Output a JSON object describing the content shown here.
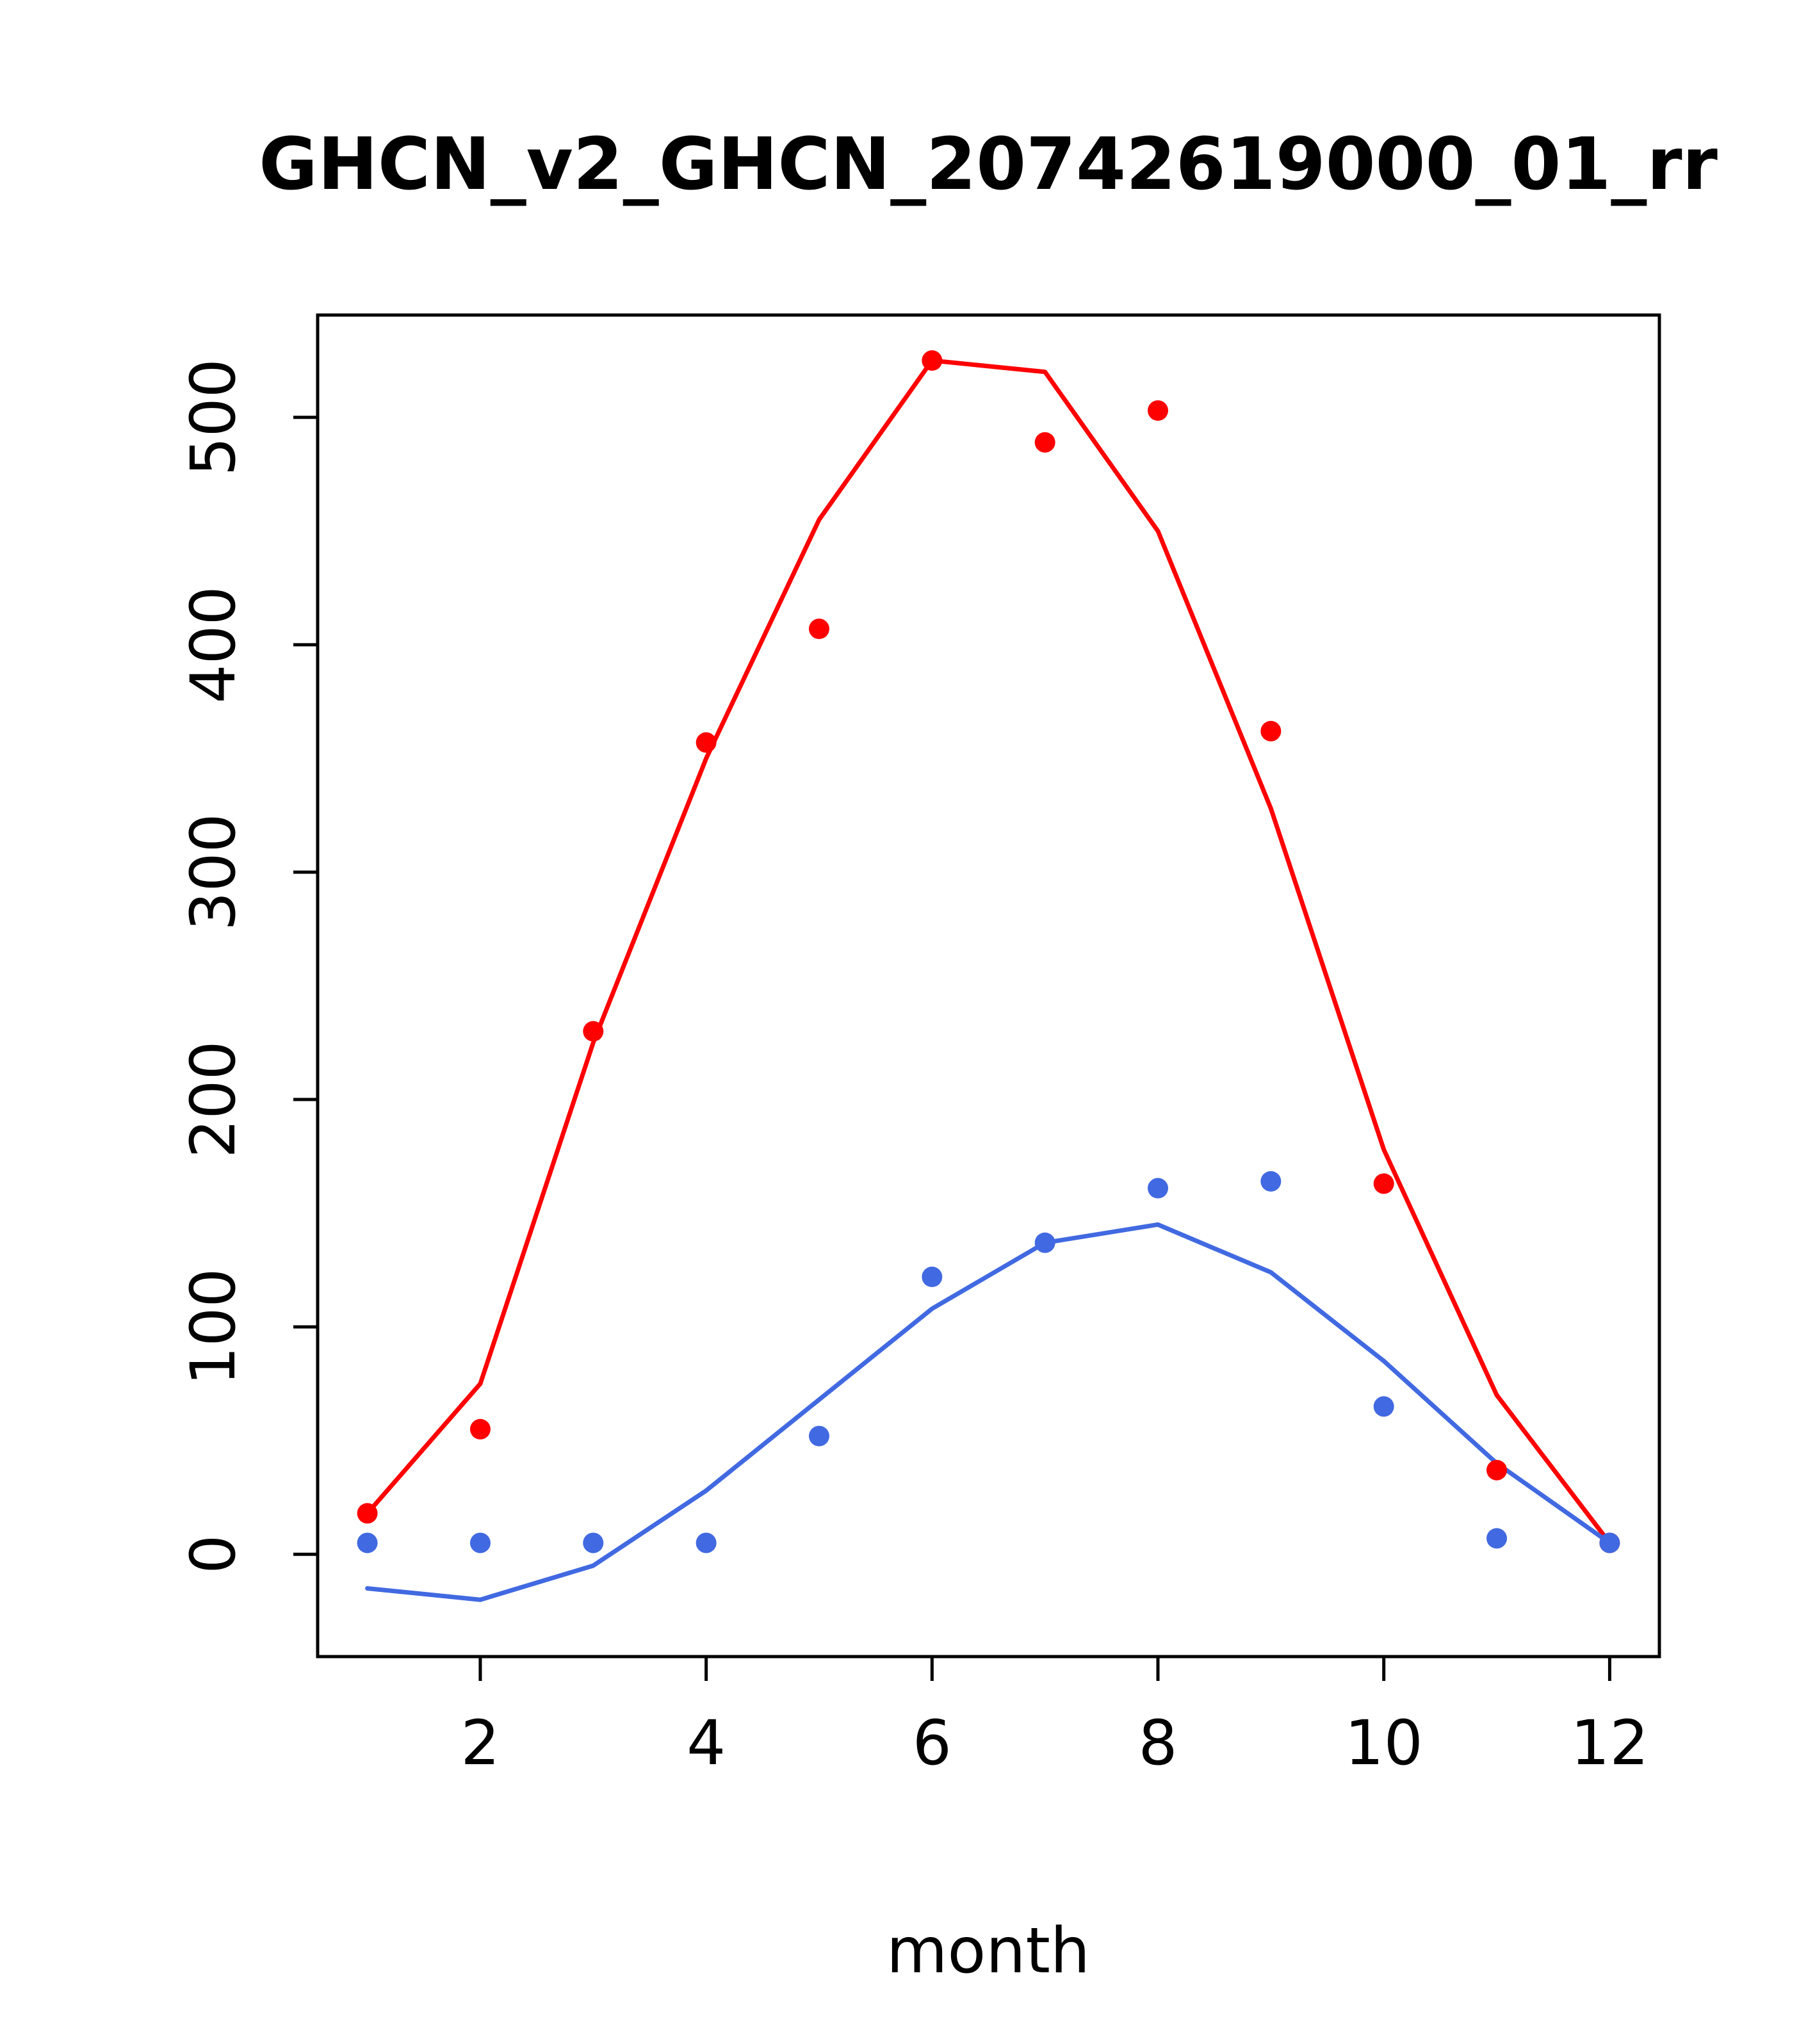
{
  "page": {
    "background": "#ffffff"
  },
  "chart_data": {
    "type": "scatter",
    "title": "GHCN_v2_GHCN_20742619000_01_rr",
    "xlabel": "month",
    "ylabel": "",
    "grid": false,
    "legend": "none",
    "x": [
      1,
      2,
      3,
      4,
      5,
      6,
      7,
      8,
      9,
      10,
      11,
      12
    ],
    "xlim": [
      0.56,
      12.44
    ],
    "ylim": [
      -45,
      545
    ],
    "xticks": [
      2,
      4,
      6,
      8,
      10,
      12
    ],
    "yticks": [
      0,
      100,
      200,
      300,
      400,
      500
    ],
    "series": [
      {
        "name": "red-line",
        "kind": "line",
        "color": "#FF0000",
        "values": [
          18,
          75,
          225,
          350,
          455,
          525,
          520,
          450,
          328,
          178,
          70,
          5
        ]
      },
      {
        "name": "red-points",
        "kind": "points",
        "color": "#FF0000",
        "values": [
          18,
          55,
          230,
          357,
          407,
          525,
          489,
          503,
          362,
          163,
          37,
          5
        ]
      },
      {
        "name": "blue-line",
        "kind": "line",
        "color": "#4169E1",
        "values": [
          -15,
          -20,
          -5,
          28,
          68,
          108,
          137,
          145,
          124,
          85,
          40,
          5
        ]
      },
      {
        "name": "blue-points",
        "kind": "points",
        "color": "#4169E1",
        "values": [
          5,
          5,
          5,
          5,
          52,
          122,
          137,
          161,
          164,
          65,
          7,
          5
        ]
      }
    ]
  },
  "style": {
    "axis_color": "#000000",
    "point_radius": 16,
    "line_width": 7,
    "box_stroke": 5
  }
}
